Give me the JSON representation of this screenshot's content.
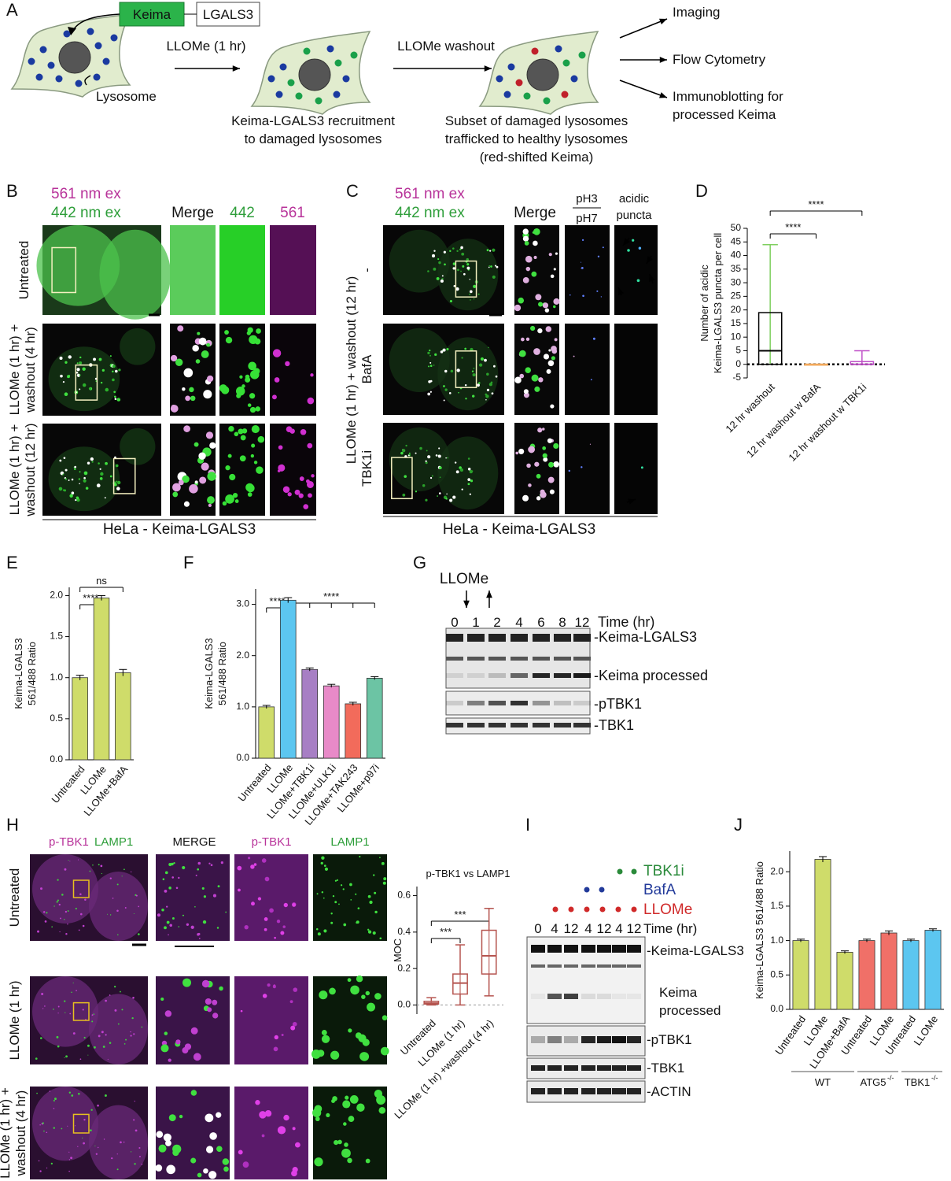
{
  "panel_labels": [
    "A",
    "B",
    "C",
    "D",
    "E",
    "F",
    "G",
    "H",
    "I",
    "J"
  ],
  "schematic": {
    "construct": [
      "Keima",
      "LGALS3"
    ],
    "step1": "LLOMe (1 hr)",
    "lysosome": "Lysosome",
    "step2": "LLOMe washout",
    "caption1": [
      "Keima-LGALS3 recruitment",
      "to damaged lysosomes"
    ],
    "caption2": [
      "Subset of damaged lysosomes",
      "trafficked to healthy lysosomes",
      "(red-shifted Keima)"
    ],
    "readouts": [
      [
        "Imaging"
      ],
      [
        "Flow Cytometry"
      ],
      [
        "Immunoblotting for",
        "processed Keima"
      ]
    ]
  },
  "panel_b": {
    "channels": [
      "561 nm ex",
      "442 nm ex"
    ],
    "columns": [
      "Merge",
      "442",
      "561"
    ],
    "rows": [
      [
        "Untreated"
      ],
      [
        "LLOMe (1 hr) +",
        "washout (4 hr)"
      ],
      [
        "LLOMe (1 hr) +",
        "washout (12 hr)"
      ]
    ],
    "cell_line": "HeLa - Keima-LGALS3"
  },
  "panel_c": {
    "channels": [
      "561 nm ex",
      "442 nm ex"
    ],
    "columns": [
      "Merge"
    ],
    "ratio": [
      "pH3",
      "pH7"
    ],
    "acidic": [
      "acidic",
      "puncta"
    ],
    "treatment": "LLOMe (1 hr) + washout (12 hr)",
    "rows": [
      "-",
      "BafA",
      "TBK1i"
    ],
    "cell_line": "HeLa - Keima-LGALS3"
  },
  "panel_g": {
    "treatment": "LLOMe",
    "times": [
      0,
      1,
      2,
      4,
      6,
      8,
      12
    ],
    "time_label": "Time (hr)",
    "bands": [
      "-Keima-LGALS3",
      "-Keima processed",
      "-pTBK1",
      "-TBK1"
    ]
  },
  "panel_h": {
    "stains": [
      "p-TBK1",
      "LAMP1"
    ],
    "columns": [
      "MERGE",
      "p-TBK1",
      "LAMP1"
    ],
    "rows": [
      [
        "Untreated"
      ],
      [
        "LLOMe (1 hr)"
      ],
      [
        "LLOMe (1 hr) +",
        "washout (4 hr)"
      ]
    ]
  },
  "panel_i": {
    "treatments": [
      "TBK1i",
      "BafA",
      "LLOMe"
    ],
    "times": [
      0,
      4,
      12,
      4,
      12,
      4,
      12
    ],
    "time_label": "Time (hr)",
    "bands": [
      [
        "-Keima-LGALS3"
      ],
      [
        "Keima",
        "processed"
      ],
      [
        "-pTBK1"
      ],
      [
        "-TBK1"
      ],
      [
        "-ACTIN"
      ]
    ]
  },
  "chart_data": [
    {
      "type": "box",
      "y_label": [
        "Number of acidic",
        "Keima-LGALS3 puncta per cell"
      ],
      "categories": [
        "12 hr washout",
        "12 hr washout w BafA",
        "12 hr washout w TBK1i"
      ],
      "boxes": [
        {
          "min": 0,
          "q1": 0,
          "median": 5,
          "q3": 19,
          "max": 44,
          "color": "#7fcf5f"
        },
        {
          "min": 0,
          "q1": 0,
          "median": 0,
          "q3": 0,
          "max": 0,
          "color": "#f2a85a"
        },
        {
          "min": 0,
          "q1": 0,
          "median": 0,
          "q3": 1,
          "max": 5,
          "color": "#c050c8"
        }
      ],
      "ylim": [
        -5,
        50
      ],
      "yticks": [
        -5,
        0,
        5,
        10,
        15,
        20,
        25,
        30,
        35,
        40,
        45,
        50
      ],
      "zero_line": true,
      "annotations": [
        "****",
        "****"
      ]
    },
    {
      "type": "bar",
      "y_label": [
        "Keima-LGALS3",
        "561/488 Ratio"
      ],
      "categories": [
        "Untreated",
        "LLOMe",
        "LLOMe+BafA"
      ],
      "values": [
        1.0,
        1.97,
        1.06
      ],
      "errors": [
        0.03,
        0.03,
        0.04
      ],
      "colors": [
        "#cfdc6a",
        "#cfdc6a",
        "#cfdc6a"
      ],
      "ylim": [
        0,
        2.1
      ],
      "yticks": [
        {
          "value": 0,
          "label": "0.0"
        },
        {
          "value": 0.5,
          "label": "0.5"
        },
        {
          "value": 1,
          "label": "1.0"
        },
        {
          "value": 1.5,
          "label": "1.5"
        },
        {
          "value": 2,
          "label": "2.0"
        }
      ],
      "annotations": [
        "****",
        "ns"
      ]
    },
    {
      "type": "bar",
      "y_label": [
        "Keima-LGALS3",
        "561/488 Ratio"
      ],
      "categories": [
        "Untreated",
        "LLOMe",
        "LLOMe+TBK1i",
        "LLOMe+ULK1i",
        "LLOMe+TAK243",
        "LLOMe+p97i"
      ],
      "values": [
        1.0,
        3.08,
        1.73,
        1.41,
        1.06,
        1.56
      ],
      "errors": [
        0.03,
        0.05,
        0.03,
        0.03,
        0.03,
        0.03
      ],
      "colors": [
        "#cfdc6a",
        "#5cc6f0",
        "#a77fc4",
        "#e88ac8",
        "#f26b5b",
        "#6cc4a4"
      ],
      "ylim": [
        0,
        3.3
      ],
      "yticks": [
        {
          "value": 0,
          "label": "0.0"
        },
        {
          "value": 1,
          "label": "1.0"
        },
        {
          "value": 2,
          "label": "2.0"
        },
        {
          "value": 3,
          "label": "3.0"
        }
      ],
      "annotations": [
        "****",
        "****"
      ]
    },
    {
      "type": "box",
      "title": "p-TBK1 vs LAMP1",
      "y_label": [
        "MOC"
      ],
      "categories": [
        "Untreated",
        "LLOMe (1 hr)",
        "LLOMe (1 hr) +washout (4 hr)"
      ],
      "boxes": [
        {
          "min": 0,
          "q1": 0.005,
          "median": 0.01,
          "q3": 0.02,
          "max": 0.04,
          "color": "#b5544f"
        },
        {
          "min": 0,
          "q1": 0.06,
          "median": 0.12,
          "q3": 0.17,
          "max": 0.33,
          "color": "#b5544f"
        },
        {
          "min": 0.05,
          "q1": 0.17,
          "median": 0.27,
          "q3": 0.41,
          "max": 0.53,
          "color": "#b5544f"
        }
      ],
      "ylim": [
        -0.05,
        0.65
      ],
      "yticks": [
        {
          "value": 0,
          "label": "0.0"
        },
        {
          "value": 0.2,
          "label": "0.2"
        },
        {
          "value": 0.4,
          "label": "0.4"
        },
        {
          "value": 0.6,
          "label": "0.6"
        }
      ],
      "zero_line": true,
      "annotations": [
        "***",
        "***"
      ]
    },
    {
      "type": "bar",
      "y_label": [
        "Keima-LGALS3 561/488 Ratio"
      ],
      "categories": [
        "Untreated",
        "LLOMe",
        "LLOMe+BafA",
        "Untreated",
        "LLOMe",
        "Untreated",
        "LLOMe"
      ],
      "values": [
        1.0,
        2.18,
        0.83,
        1.0,
        1.11,
        1.0,
        1.15
      ],
      "errors": [
        0.02,
        0.04,
        0.02,
        0.02,
        0.03,
        0.02,
        0.02
      ],
      "colors": [
        "#cfdc6a",
        "#cfdc6a",
        "#cfdc6a",
        "#f07068",
        "#f07068",
        "#5cc6f0",
        "#5cc6f0"
      ],
      "ylim": [
        0,
        2.3
      ],
      "yticks": [
        {
          "value": 0,
          "label": "0.0"
        },
        {
          "value": 0.5,
          "label": "0.5"
        },
        {
          "value": 1,
          "label": "1.0"
        },
        {
          "value": 1.5,
          "label": "1.5"
        },
        {
          "value": 2,
          "label": "2.0"
        }
      ],
      "groups": [
        {
          "name": "WT"
        },
        {
          "name": "ATG5",
          "sup": "-/-"
        },
        {
          "name": "TBK1",
          "sup": "-/-"
        }
      ]
    }
  ]
}
